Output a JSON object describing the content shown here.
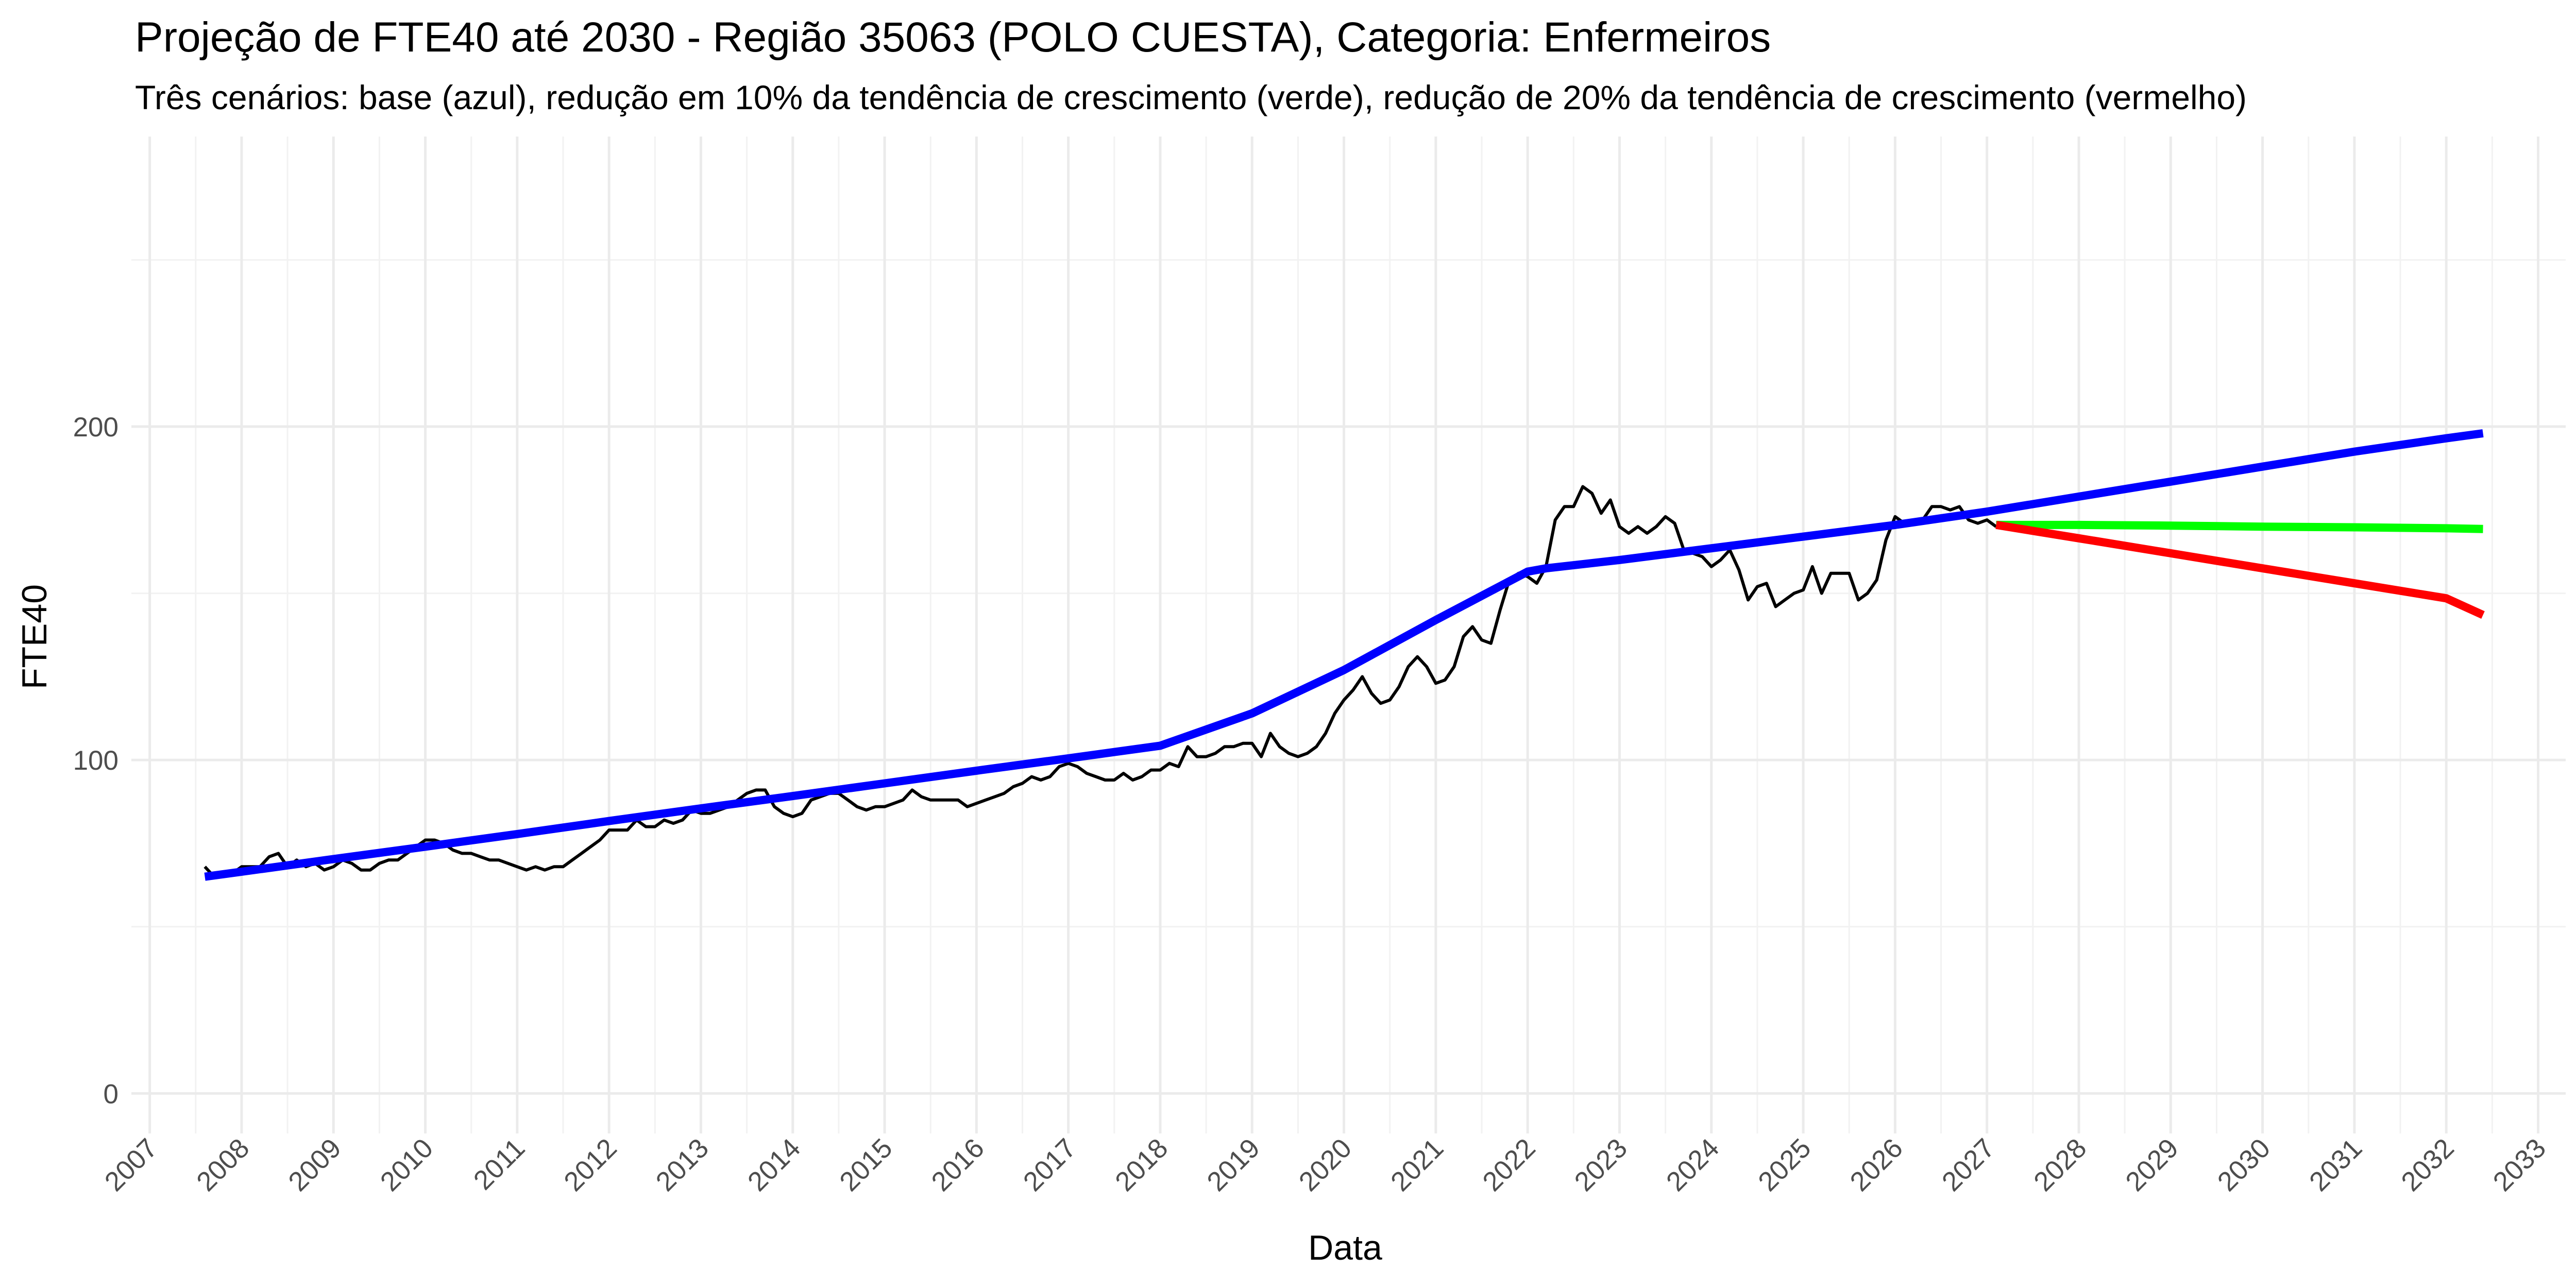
{
  "chart_data": {
    "type": "line",
    "title": "Projeção de FTE40 até 2030 - Região 35063 (POLO CUESTA), Categoria: Enfermeiros",
    "subtitle": "Três cenários: base (azul), redução em 10% da tendência de crescimento (verde), redução de 20% da tendência de crescimento (vermelho)",
    "xlabel": "Data",
    "ylabel": "FTE40",
    "xlim": [
      2006.8,
      2033.3
    ],
    "ylim": [
      -12,
      287
    ],
    "x_ticks": [
      2007,
      2008,
      2009,
      2010,
      2011,
      2012,
      2013,
      2014,
      2015,
      2016,
      2017,
      2018,
      2019,
      2020,
      2021,
      2022,
      2023,
      2024,
      2025,
      2026,
      2027,
      2028,
      2029,
      2030,
      2031,
      2032,
      2033
    ],
    "x_tick_labels": [
      "2007",
      "2008",
      "2009",
      "2010",
      "2011",
      "2012",
      "2013",
      "2014",
      "2015",
      "2016",
      "2017",
      "2018",
      "2019",
      "2020",
      "2021",
      "2022",
      "2023",
      "2024",
      "2025",
      "2026",
      "2027",
      "2028",
      "2029",
      "2030",
      "2031",
      "2032",
      "2033"
    ],
    "y_ticks": [
      0,
      100,
      200
    ],
    "y_tick_labels": [
      "0",
      "100",
      "200"
    ],
    "grid": true,
    "series": [
      {
        "color": "#000000",
        "values": [
          [
            2007.6,
            68
          ],
          [
            2007.7,
            65
          ],
          [
            2007.8,
            66
          ],
          [
            2007.9,
            66
          ],
          [
            2008.0,
            68
          ],
          [
            2008.1,
            68
          ],
          [
            2008.2,
            68
          ],
          [
            2008.3,
            71
          ],
          [
            2008.4,
            72
          ],
          [
            2008.5,
            68
          ],
          [
            2008.6,
            70
          ],
          [
            2008.7,
            68
          ],
          [
            2008.8,
            69
          ],
          [
            2008.9,
            67
          ],
          [
            2009.0,
            68
          ],
          [
            2009.1,
            70
          ],
          [
            2009.2,
            69
          ],
          [
            2009.3,
            67
          ],
          [
            2009.4,
            67
          ],
          [
            2009.5,
            69
          ],
          [
            2009.6,
            70
          ],
          [
            2009.7,
            70
          ],
          [
            2009.8,
            72
          ],
          [
            2009.9,
            74
          ],
          [
            2010.0,
            76
          ],
          [
            2010.1,
            76
          ],
          [
            2010.2,
            75
          ],
          [
            2010.3,
            73
          ],
          [
            2010.4,
            72
          ],
          [
            2010.5,
            72
          ],
          [
            2010.6,
            71
          ],
          [
            2010.7,
            70
          ],
          [
            2010.8,
            70
          ],
          [
            2010.9,
            69
          ],
          [
            2011.0,
            68
          ],
          [
            2011.1,
            67
          ],
          [
            2011.2,
            68
          ],
          [
            2011.3,
            67
          ],
          [
            2011.4,
            68
          ],
          [
            2011.5,
            68
          ],
          [
            2011.6,
            70
          ],
          [
            2011.7,
            72
          ],
          [
            2011.8,
            74
          ],
          [
            2011.9,
            76
          ],
          [
            2012.0,
            79
          ],
          [
            2012.1,
            79
          ],
          [
            2012.2,
            79
          ],
          [
            2012.3,
            82
          ],
          [
            2012.4,
            80
          ],
          [
            2012.5,
            80
          ],
          [
            2012.6,
            82
          ],
          [
            2012.7,
            81
          ],
          [
            2012.8,
            82
          ],
          [
            2012.9,
            85
          ],
          [
            2013.0,
            84
          ],
          [
            2013.1,
            84
          ],
          [
            2013.2,
            85
          ],
          [
            2013.3,
            86
          ],
          [
            2013.4,
            88
          ],
          [
            2013.5,
            90
          ],
          [
            2013.6,
            91
          ],
          [
            2013.7,
            91
          ],
          [
            2013.8,
            86
          ],
          [
            2013.9,
            84
          ],
          [
            2014.0,
            83
          ],
          [
            2014.1,
            84
          ],
          [
            2014.2,
            88
          ],
          [
            2014.3,
            89
          ],
          [
            2014.4,
            90
          ],
          [
            2014.5,
            90
          ],
          [
            2014.6,
            88
          ],
          [
            2014.7,
            86
          ],
          [
            2014.8,
            85
          ],
          [
            2014.9,
            86
          ],
          [
            2015.0,
            86
          ],
          [
            2015.1,
            87
          ],
          [
            2015.2,
            88
          ],
          [
            2015.3,
            91
          ],
          [
            2015.4,
            89
          ],
          [
            2015.5,
            88
          ],
          [
            2015.6,
            88
          ],
          [
            2015.7,
            88
          ],
          [
            2015.8,
            88
          ],
          [
            2015.9,
            86
          ],
          [
            2016.0,
            87
          ],
          [
            2016.1,
            88
          ],
          [
            2016.2,
            89
          ],
          [
            2016.3,
            90
          ],
          [
            2016.4,
            92
          ],
          [
            2016.5,
            93
          ],
          [
            2016.6,
            95
          ],
          [
            2016.7,
            94
          ],
          [
            2016.8,
            95
          ],
          [
            2016.9,
            98
          ],
          [
            2017.0,
            99
          ],
          [
            2017.1,
            98
          ],
          [
            2017.2,
            96
          ],
          [
            2017.3,
            95
          ],
          [
            2017.4,
            94
          ],
          [
            2017.5,
            94
          ],
          [
            2017.6,
            96
          ],
          [
            2017.7,
            94
          ],
          [
            2017.8,
            95
          ],
          [
            2017.9,
            97
          ],
          [
            2018.0,
            97
          ],
          [
            2018.1,
            99
          ],
          [
            2018.2,
            98
          ],
          [
            2018.3,
            104
          ],
          [
            2018.4,
            101
          ],
          [
            2018.5,
            101
          ],
          [
            2018.6,
            102
          ],
          [
            2018.7,
            104
          ],
          [
            2018.8,
            104
          ],
          [
            2018.9,
            105
          ],
          [
            2019.0,
            105
          ],
          [
            2019.1,
            101
          ],
          [
            2019.2,
            108
          ],
          [
            2019.3,
            104
          ],
          [
            2019.4,
            102
          ],
          [
            2019.5,
            101
          ],
          [
            2019.6,
            102
          ],
          [
            2019.7,
            104
          ],
          [
            2019.8,
            108
          ],
          [
            2019.9,
            114
          ],
          [
            2020.0,
            118
          ],
          [
            2020.1,
            121
          ],
          [
            2020.2,
            125
          ],
          [
            2020.3,
            120
          ],
          [
            2020.4,
            117
          ],
          [
            2020.5,
            118
          ],
          [
            2020.6,
            122
          ],
          [
            2020.7,
            128
          ],
          [
            2020.8,
            131
          ],
          [
            2020.9,
            128
          ],
          [
            2021.0,
            123
          ],
          [
            2021.1,
            124
          ],
          [
            2021.2,
            128
          ],
          [
            2021.3,
            137
          ],
          [
            2021.4,
            140
          ],
          [
            2021.5,
            136
          ],
          [
            2021.6,
            135
          ],
          [
            2021.7,
            145
          ],
          [
            2021.8,
            154
          ],
          [
            2021.9,
            156
          ],
          [
            2022.0,
            155
          ],
          [
            2022.1,
            153
          ],
          [
            2022.2,
            158
          ],
          [
            2022.3,
            172
          ],
          [
            2022.4,
            176
          ],
          [
            2022.5,
            176
          ],
          [
            2022.6,
            182
          ],
          [
            2022.7,
            180
          ],
          [
            2022.8,
            174
          ],
          [
            2022.9,
            178
          ],
          [
            2023.0,
            170
          ],
          [
            2023.1,
            168
          ],
          [
            2023.2,
            170
          ],
          [
            2023.3,
            168
          ],
          [
            2023.4,
            170
          ],
          [
            2023.5,
            173
          ],
          [
            2023.6,
            171
          ],
          [
            2023.7,
            163
          ],
          [
            2023.8,
            162
          ],
          [
            2023.9,
            161
          ],
          [
            2024.0,
            158
          ],
          [
            2024.1,
            160
          ],
          [
            2024.2,
            163
          ],
          [
            2024.3,
            157
          ],
          [
            2024.4,
            148
          ],
          [
            2024.5,
            152
          ],
          [
            2024.6,
            153
          ],
          [
            2024.7,
            146
          ],
          [
            2024.8,
            148
          ],
          [
            2024.9,
            150
          ],
          [
            2025.0,
            151
          ],
          [
            2025.1,
            158
          ],
          [
            2025.2,
            150
          ],
          [
            2025.3,
            156
          ],
          [
            2025.4,
            156
          ],
          [
            2025.5,
            156
          ],
          [
            2025.6,
            148
          ],
          [
            2025.7,
            150
          ],
          [
            2025.8,
            154
          ],
          [
            2025.9,
            166
          ],
          [
            2026.0,
            173
          ],
          [
            2026.1,
            171
          ],
          [
            2026.2,
            172
          ],
          [
            2026.3,
            172
          ],
          [
            2026.4,
            176
          ],
          [
            2026.5,
            176
          ],
          [
            2026.6,
            175
          ],
          [
            2026.7,
            176
          ],
          [
            2026.8,
            172
          ],
          [
            2026.9,
            171
          ],
          [
            2027.0,
            172
          ],
          [
            2027.1,
            170
          ]
        ]
      },
      {
        "color": "#0000ff",
        "values": [
          [
            2007.6,
            65
          ],
          [
            2008.0,
            66.5
          ],
          [
            2009.0,
            70.3
          ],
          [
            2010.0,
            74
          ],
          [
            2011.0,
            77.8
          ],
          [
            2012.0,
            81.7
          ],
          [
            2013.0,
            85.5
          ],
          [
            2014.0,
            89.2
          ],
          [
            2015.0,
            93
          ],
          [
            2016.0,
            96.8
          ],
          [
            2017.0,
            100.5
          ],
          [
            2018.0,
            104.3
          ],
          [
            2019.0,
            114
          ],
          [
            2020.0,
            127
          ],
          [
            2021.0,
            142
          ],
          [
            2022.0,
            156.5
          ],
          [
            2022.2,
            157.5
          ],
          [
            2023.0,
            160
          ],
          [
            2024.0,
            163.5
          ],
          [
            2025.0,
            167
          ],
          [
            2026.0,
            170.5
          ],
          [
            2027.0,
            174.5
          ],
          [
            2028.0,
            179
          ],
          [
            2029.0,
            183.5
          ],
          [
            2030.0,
            188
          ],
          [
            2031.0,
            192.5
          ],
          [
            2032.0,
            196.5
          ],
          [
            2032.4,
            198
          ]
        ]
      },
      {
        "color": "#00ff00",
        "values": [
          [
            2027.1,
            170.5
          ],
          [
            2028.0,
            170.5
          ],
          [
            2029.0,
            170.3
          ],
          [
            2030.0,
            170.0
          ],
          [
            2031.0,
            169.8
          ],
          [
            2032.0,
            169.5
          ],
          [
            2032.4,
            169.3
          ]
        ]
      },
      {
        "color": "#ff0000",
        "values": [
          [
            2027.1,
            170.5
          ],
          [
            2028.0,
            166.5
          ],
          [
            2029.0,
            162
          ],
          [
            2030.0,
            157.5
          ],
          [
            2031.0,
            153
          ],
          [
            2032.0,
            148.5
          ],
          [
            2032.4,
            143.5
          ]
        ]
      }
    ]
  }
}
